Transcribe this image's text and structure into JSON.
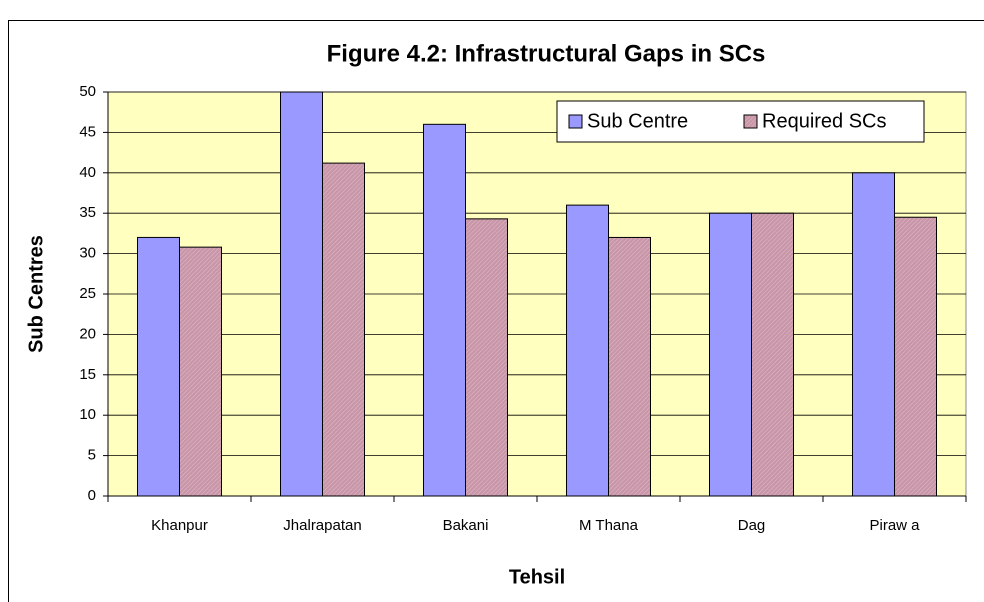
{
  "chart_data": {
    "type": "bar",
    "title": "Figure 4.2: Infrastructural Gaps in SCs",
    "x_label": "Tehsil",
    "y_label": "Sub Centres",
    "categories": [
      "Khanpur",
      "Jhalrapatan",
      "Bakani",
      "M Thana",
      "Dag",
      "Piraw a"
    ],
    "series": [
      {
        "name": "Sub Centre",
        "color": "#9999ff",
        "values": [
          32,
          50,
          46,
          36,
          35,
          40
        ]
      },
      {
        "name": "Required SCs",
        "color": "#c896a8",
        "values": [
          30.8,
          41.2,
          34.3,
          32,
          35,
          34.5
        ]
      }
    ],
    "ylim": [
      0,
      50
    ],
    "yticks": [
      0,
      5,
      10,
      15,
      20,
      25,
      30,
      35,
      40,
      45,
      50
    ],
    "grid": true,
    "legend": "upper right",
    "background": "#ffffc0"
  }
}
